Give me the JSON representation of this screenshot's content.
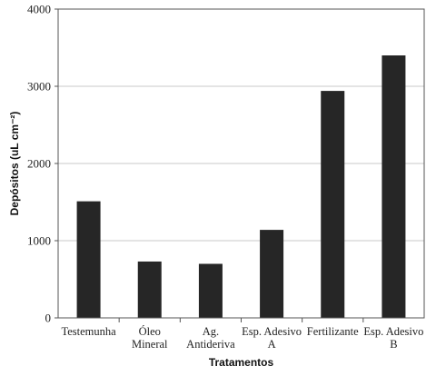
{
  "chart_data": {
    "type": "bar",
    "title": "",
    "xlabel": "Tratamentos",
    "ylabel": "Depósitos (uL cm⁻²)",
    "ylim": [
      0,
      4000
    ],
    "yticks": [
      0,
      1000,
      2000,
      3000,
      4000
    ],
    "grid": "horizontal",
    "categories": [
      [
        "Testemunha"
      ],
      [
        "Óleo",
        "Mineral"
      ],
      [
        "Ag.",
        "Antideriva"
      ],
      [
        "Esp. Adesivo",
        "A"
      ],
      [
        "Fertilizante"
      ],
      [
        "Esp. Adesivo",
        "B"
      ]
    ],
    "values": [
      1510,
      730,
      700,
      1140,
      2940,
      3400
    ],
    "bar_color": "#262626",
    "grid_color": "#c8c8c8",
    "frame_color": "#555555"
  }
}
